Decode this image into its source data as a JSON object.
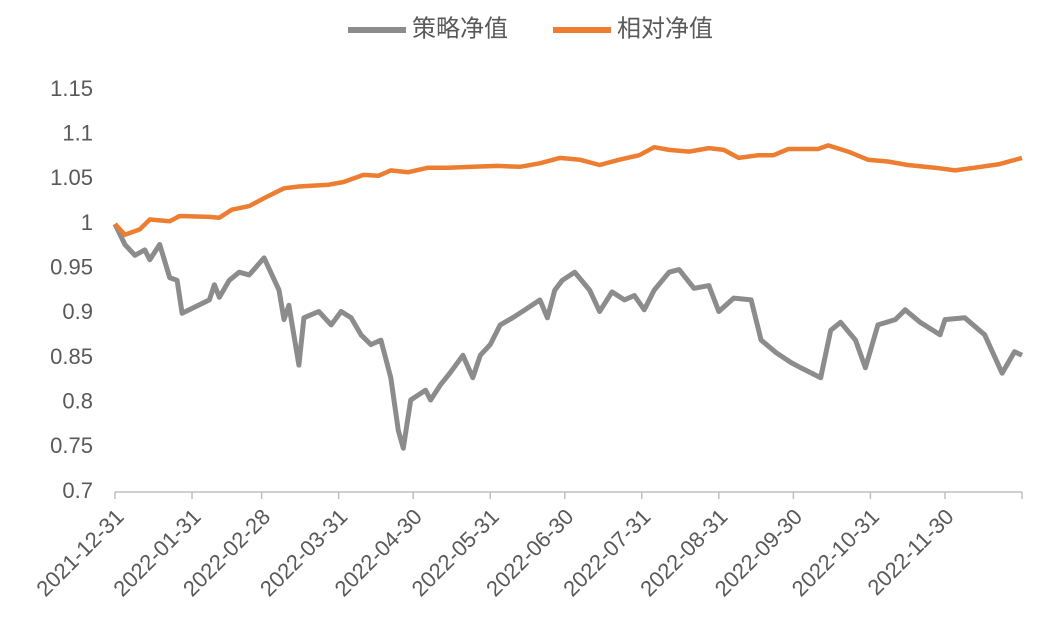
{
  "chart_data": {
    "type": "line",
    "xlim": [
      "2021-12-31",
      "2022-12-31"
    ],
    "xticks": [
      "2021-12-31",
      "2022-01-31",
      "2022-02-28",
      "2022-03-31",
      "2022-04-30",
      "2022-05-31",
      "2022-06-30",
      "2022-07-31",
      "2022-08-31",
      "2022-09-30",
      "2022-10-31",
      "2022-11-30"
    ],
    "ylim": [
      0.7,
      1.15
    ],
    "yticks": [
      0.7,
      0.75,
      0.8,
      0.85,
      0.9,
      0.95,
      1,
      1.05,
      1.1,
      1.15
    ],
    "grid": false,
    "legend": "top",
    "series": [
      {
        "name": "策略净值",
        "color": "#8c8c8c",
        "x": [
          "2021-12-31",
          "2022-01-04",
          "2022-01-08",
          "2022-01-12",
          "2022-01-14",
          "2022-01-18",
          "2022-01-22",
          "2022-01-25",
          "2022-01-27",
          "2022-02-07",
          "2022-02-09",
          "2022-02-11",
          "2022-02-15",
          "2022-02-19",
          "2022-02-23",
          "2022-03-01",
          "2022-03-07",
          "2022-03-09",
          "2022-03-11",
          "2022-03-15",
          "2022-03-17",
          "2022-03-23",
          "2022-03-28",
          "2022-04-01",
          "2022-04-05",
          "2022-04-09",
          "2022-04-13",
          "2022-04-17",
          "2022-04-21",
          "2022-04-24",
          "2022-04-26",
          "2022-04-29",
          "2022-05-05",
          "2022-05-07",
          "2022-05-11",
          "2022-05-15",
          "2022-05-20",
          "2022-05-24",
          "2022-05-27",
          "2022-05-31",
          "2022-06-04",
          "2022-06-09",
          "2022-06-14",
          "2022-06-20",
          "2022-06-23",
          "2022-06-26",
          "2022-06-29",
          "2022-07-04",
          "2022-07-10",
          "2022-07-14",
          "2022-07-19",
          "2022-07-24",
          "2022-07-28",
          "2022-08-01",
          "2022-08-05",
          "2022-08-11",
          "2022-08-15",
          "2022-08-21",
          "2022-08-27",
          "2022-08-31",
          "2022-09-06",
          "2022-09-13",
          "2022-09-17",
          "2022-09-23",
          "2022-09-29",
          "2022-10-03",
          "2022-10-11",
          "2022-10-15",
          "2022-10-19",
          "2022-10-25",
          "2022-10-29",
          "2022-11-03",
          "2022-11-10",
          "2022-11-14",
          "2022-11-20",
          "2022-11-28",
          "2022-11-30",
          "2022-12-08",
          "2022-12-16",
          "2022-12-23",
          "2022-12-28",
          "2022-12-31"
        ],
        "values": [
          1.0,
          0.977,
          0.965,
          0.971,
          0.96,
          0.977,
          0.94,
          0.937,
          0.9,
          0.915,
          0.932,
          0.918,
          0.937,
          0.946,
          0.943,
          0.962,
          0.926,
          0.893,
          0.909,
          0.842,
          0.895,
          0.902,
          0.887,
          0.902,
          0.895,
          0.876,
          0.865,
          0.87,
          0.828,
          0.769,
          0.749,
          0.803,
          0.814,
          0.803,
          0.82,
          0.834,
          0.853,
          0.828,
          0.853,
          0.865,
          0.887,
          0.895,
          0.904,
          0.915,
          0.895,
          0.926,
          0.937,
          0.946,
          0.926,
          0.902,
          0.924,
          0.915,
          0.92,
          0.904,
          0.926,
          0.946,
          0.949,
          0.928,
          0.931,
          0.902,
          0.917,
          0.915,
          0.87,
          0.856,
          0.845,
          0.839,
          0.828,
          0.881,
          0.89,
          0.87,
          0.839,
          0.887,
          0.893,
          0.904,
          0.89,
          0.876,
          0.893,
          0.895,
          0.876,
          0.833,
          0.857,
          0.853
        ]
      },
      {
        "name": "相对净值",
        "color": "#ed7d31",
        "x": [
          "2021-12-31",
          "2022-01-04",
          "2022-01-10",
          "2022-01-14",
          "2022-01-22",
          "2022-01-26",
          "2022-02-07",
          "2022-02-11",
          "2022-02-16",
          "2022-02-23",
          "2022-03-01",
          "2022-03-09",
          "2022-03-15",
          "2022-03-27",
          "2022-04-02",
          "2022-04-10",
          "2022-04-16",
          "2022-04-21",
          "2022-04-28",
          "2022-05-06",
          "2022-05-14",
          "2022-05-24",
          "2022-06-03",
          "2022-06-12",
          "2022-06-20",
          "2022-06-28",
          "2022-07-06",
          "2022-07-14",
          "2022-07-22",
          "2022-07-30",
          "2022-08-05",
          "2022-08-11",
          "2022-08-19",
          "2022-08-27",
          "2022-09-02",
          "2022-09-08",
          "2022-09-16",
          "2022-09-22",
          "2022-09-28",
          "2022-10-10",
          "2022-10-14",
          "2022-10-22",
          "2022-10-30",
          "2022-11-07",
          "2022-11-15",
          "2022-11-26",
          "2022-12-04",
          "2022-12-12",
          "2022-12-22",
          "2022-12-31"
        ],
        "values": [
          1.0,
          0.988,
          0.994,
          1.005,
          1.003,
          1.009,
          1.008,
          1.007,
          1.016,
          1.02,
          1.029,
          1.04,
          1.042,
          1.044,
          1.047,
          1.055,
          1.054,
          1.06,
          1.058,
          1.063,
          1.063,
          1.064,
          1.065,
          1.064,
          1.068,
          1.074,
          1.072,
          1.066,
          1.072,
          1.077,
          1.086,
          1.083,
          1.081,
          1.085,
          1.083,
          1.074,
          1.077,
          1.077,
          1.084,
          1.084,
          1.088,
          1.081,
          1.072,
          1.07,
          1.066,
          1.063,
          1.06,
          1.063,
          1.067,
          1.074
        ]
      }
    ]
  }
}
